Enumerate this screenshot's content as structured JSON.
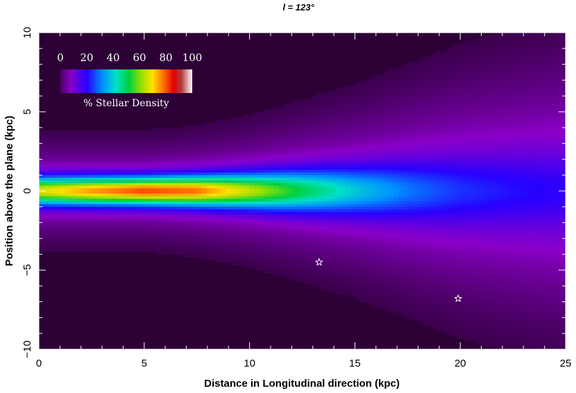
{
  "chart_data": {
    "type": "heatmap",
    "title": "l  = 123°",
    "xlabel": "Distance in Longitudinal direction (kpc)",
    "ylabel": "Position above the plane (kpc)",
    "xlim": [
      0,
      25
    ],
    "ylim": [
      -10,
      10
    ],
    "x_ticks": [
      0,
      5,
      10,
      15,
      20,
      25
    ],
    "y_ticks": [
      -10,
      -5,
      0,
      5,
      10
    ],
    "x_tick_labels": [
      "0",
      "5",
      "10",
      "15",
      "20",
      "25"
    ],
    "y_tick_labels": [
      "−10",
      "−5",
      "0",
      "5",
      "10"
    ],
    "colorbar": {
      "label": "% Stellar Density",
      "ticks": [
        0,
        20,
        40,
        60,
        80,
        100
      ],
      "tick_labels": [
        "0",
        "20",
        "40",
        "60",
        "80",
        "100"
      ],
      "position": "top-left"
    },
    "density_profile": {
      "x": [
        0,
        2.5,
        5,
        7.5,
        10,
        12.5,
        15,
        17.5,
        20,
        22.5,
        25
      ],
      "peak_percent": [
        58,
        66,
        72,
        69,
        56,
        42,
        30,
        21,
        15,
        12,
        10
      ],
      "vertical_extent_kpc": [
        0.6,
        0.6,
        0.6,
        0.65,
        0.75,
        0.9,
        1.05,
        1.25,
        1.45,
        1.6,
        1.75
      ]
    },
    "markers": [
      {
        "symbol": "star",
        "x": 13.3,
        "y": -4.5
      },
      {
        "symbol": "star",
        "x": 19.9,
        "y": -6.8
      }
    ],
    "colors": {
      "background": "#2d0036",
      "frame": "#ffffff",
      "star": "#ffffff"
    }
  }
}
